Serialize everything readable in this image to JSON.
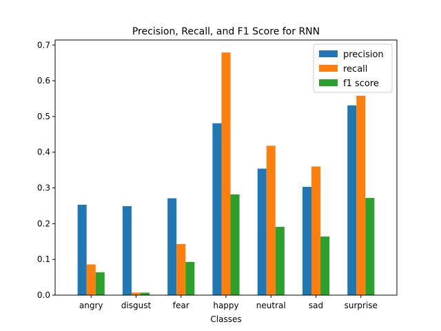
{
  "chart_data": {
    "type": "bar",
    "title": "Precision, Recall, and F1 Score for RNN",
    "xlabel": "Classes",
    "ylabel": "",
    "categories": [
      "angry",
      "disgust",
      "fear",
      "happy",
      "neutral",
      "sad",
      "surprise"
    ],
    "series": [
      {
        "name": "precision",
        "color": "#1f77b4",
        "values": [
          0.253,
          0.249,
          0.271,
          0.481,
          0.354,
          0.303,
          0.531
        ]
      },
      {
        "name": "recall",
        "color": "#ff7f0e",
        "values": [
          0.086,
          0.007,
          0.143,
          0.679,
          0.418,
          0.36,
          0.558
        ]
      },
      {
        "name": "f1 score",
        "color": "#2ca02c",
        "values": [
          0.064,
          0.007,
          0.093,
          0.282,
          0.191,
          0.164,
          0.272
        ]
      }
    ],
    "ylim": [
      0,
      0.714
    ],
    "yticks": [
      "0.0",
      "0.1",
      "0.2",
      "0.3",
      "0.4",
      "0.5",
      "0.6",
      "0.7"
    ],
    "grid": false,
    "legend_position": "top-right"
  }
}
